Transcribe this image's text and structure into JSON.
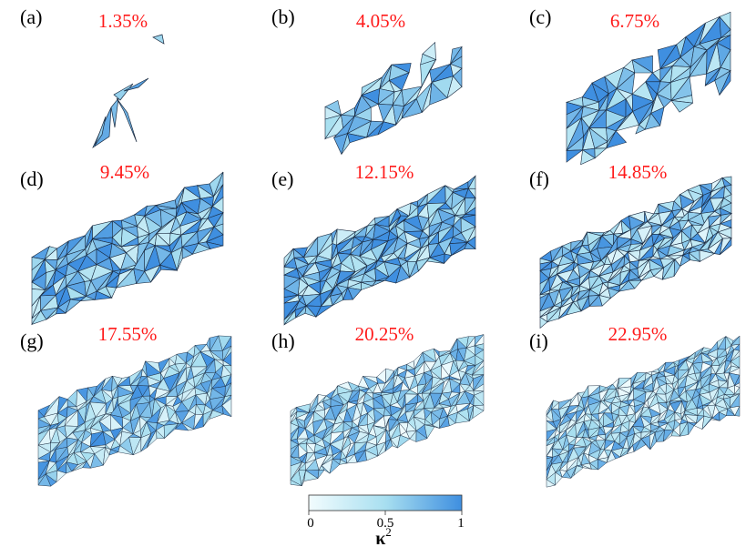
{
  "panels": [
    {
      "label": "(a)",
      "percent": "1.35%"
    },
    {
      "label": "(b)",
      "percent": "4.05%"
    },
    {
      "label": "(c)",
      "percent": "6.75%"
    },
    {
      "label": "(d)",
      "percent": "9.45%"
    },
    {
      "label": "(e)",
      "percent": "12.15%"
    },
    {
      "label": "(f)",
      "percent": "14.85%"
    },
    {
      "label": "(g)",
      "percent": "17.55%"
    },
    {
      "label": "(h)",
      "percent": "20.25%"
    },
    {
      "label": "(i)",
      "percent": "22.95%"
    }
  ],
  "colorbar": {
    "title": "κ",
    "title_superscript": "2",
    "ticks": [
      "0",
      "0.5",
      "1"
    ],
    "range": [
      0,
      1
    ],
    "color_low": "#f2fcfe",
    "color_high": "#3f8fe0"
  },
  "colors": {
    "percent_label": "#ff1a1a",
    "fragment_stroke": "#1a2a40"
  }
}
